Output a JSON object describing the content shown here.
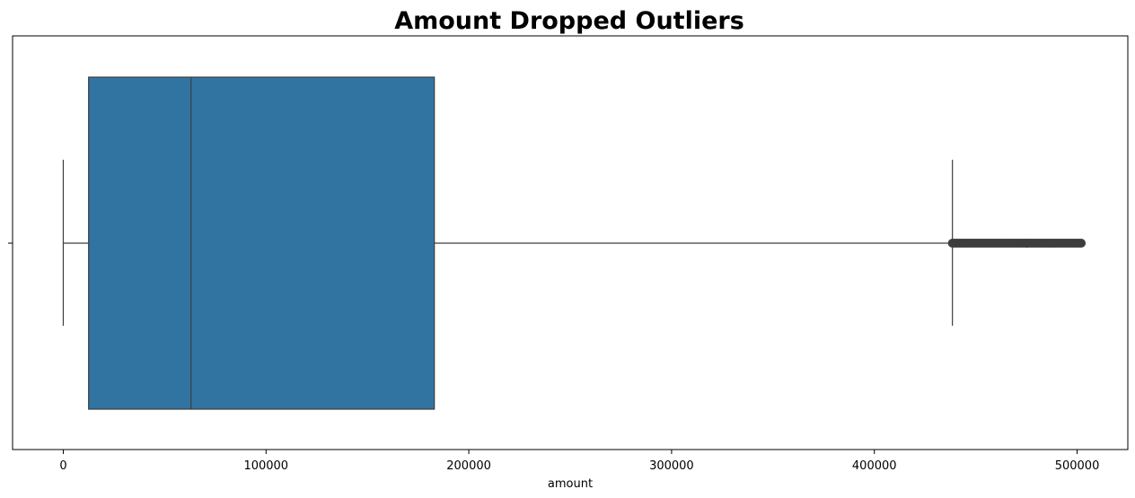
{
  "chart_data": {
    "type": "box",
    "title": "Amount Dropped Outliers",
    "xlabel": "amount",
    "ylabel": "",
    "orientation": "horizontal",
    "xlim": [
      -25000,
      525000
    ],
    "xticks": [
      0,
      100000,
      200000,
      300000,
      400000,
      500000
    ],
    "xtick_labels": [
      "0",
      "100000",
      "200000",
      "300000",
      "400000",
      "500000"
    ],
    "grid": false,
    "box": {
      "whisker_low": 0,
      "q1": 12500,
      "median": 63000,
      "q3": 183000,
      "whisker_high": 438500
    },
    "outliers_range": [
      438500,
      502000
    ],
    "colors": {
      "box_fill": "#3274a1",
      "lines": "#3d3d3d",
      "outliers": "#3d3d3d"
    }
  }
}
